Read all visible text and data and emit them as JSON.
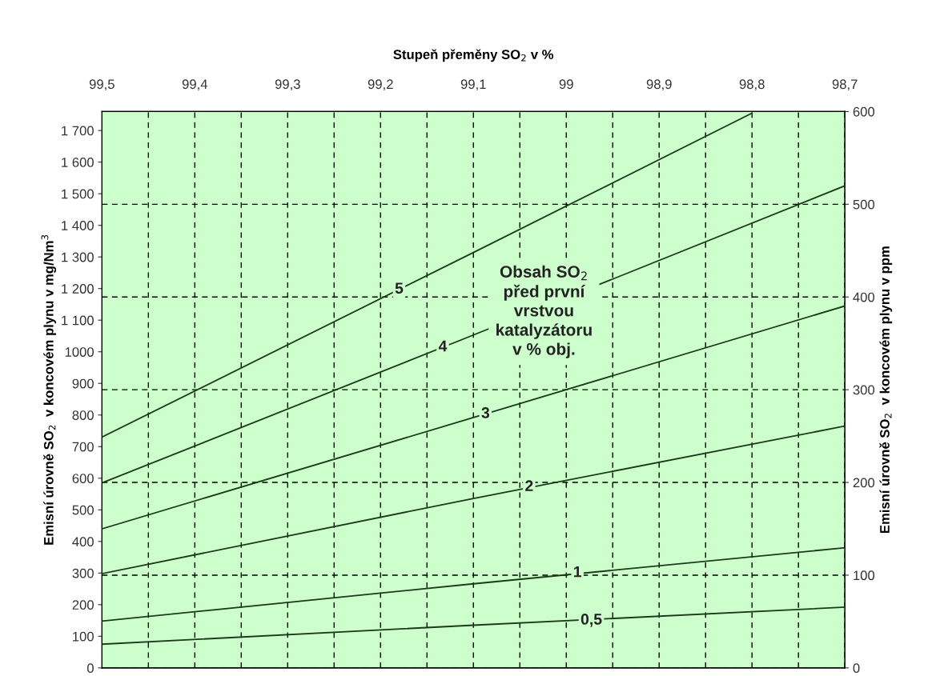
{
  "chart_data": {
    "type": "line",
    "x2label": "Stupeň přeměny SO$_{2}$ v %",
    "ylabel": "Emisní úrovně SO$_{2}$  v koncovém plynu v mg/Nm$^{3}$",
    "y2label": "Emisní úrovně SO$_{2}$  v koncovém plynu v ppm",
    "xlim": [
      99.5,
      98.7
    ],
    "xticks": [
      {
        "value": 99.5,
        "label": "99,5"
      },
      {
        "value": 99.45,
        "label": null
      },
      {
        "value": 99.4,
        "label": "99,4"
      },
      {
        "value": 99.35,
        "label": null
      },
      {
        "value": 99.3,
        "label": "99,3"
      },
      {
        "value": 99.25,
        "label": null
      },
      {
        "value": 99.2,
        "label": "99,2"
      },
      {
        "value": 99.15,
        "label": null
      },
      {
        "value": 99.1,
        "label": "99,1"
      },
      {
        "value": 99.05,
        "label": null
      },
      {
        "value": 99,
        "label": "99"
      },
      {
        "value": 98.95,
        "label": null
      },
      {
        "value": 98.9,
        "label": "98,9"
      },
      {
        "value": 98.85,
        "label": null
      },
      {
        "value": 98.8,
        "label": "98,8"
      },
      {
        "value": 98.75,
        "label": null
      },
      {
        "value": 98.7,
        "label": "98,7"
      }
    ],
    "ylim": [
      0,
      1760
    ],
    "yticks": [
      0,
      100,
      200,
      300,
      400,
      500,
      600,
      700,
      800,
      900,
      1000,
      {
        "value": 1100,
        "label": "1 100"
      },
      {
        "value": 1200,
        "label": "1 200"
      },
      {
        "value": 1300,
        "label": "1 300"
      },
      {
        "value": 1400,
        "label": "1 400"
      },
      {
        "value": 1500,
        "label": "1 500"
      },
      {
        "value": 1600,
        "label": "1 600"
      },
      {
        "value": 1700,
        "label": "1 700"
      }
    ],
    "y2lim": [
      0,
      600
    ],
    "y2ticks": [
      0,
      100,
      200,
      300,
      400,
      500,
      600
    ],
    "grid": true,
    "series": [
      {
        "color": "#1a3a1a",
        "x": [
          99.5,
          99.1,
          98.7
        ],
        "values": [
          75,
          135,
          192
        ]
      },
      {
        "color": "#1a3a1a",
        "x": [
          99.5,
          99.1,
          98.7
        ],
        "values": [
          148,
          266,
          380
        ]
      },
      {
        "color": "#1a3a1a",
        "x": [
          99.5,
          99.1,
          98.7
        ],
        "values": [
          298,
          536,
          765
        ]
      },
      {
        "color": "#1a3a1a",
        "x": [
          99.5,
          99.1,
          98.7
        ],
        "values": [
          440,
          792,
          1145
        ]
      },
      {
        "color": "#1a3a1a",
        "x": [
          99.5,
          99.1,
          98.7
        ],
        "values": [
          585,
          1053,
          1525
        ]
      },
      {
        "color": "#1a3a1a",
        "x": [
          99.5,
          99.1,
          98.8
        ],
        "values": [
          730,
          1314,
          1755
        ]
      }
    ],
    "annotations": [
      {
        "text": "0,5",
        "x": 98.973,
        "y": 150
      },
      {
        "text": "1",
        "x": 98.988,
        "y": 300
      },
      {
        "text": "2",
        "x": 99.04,
        "y": 572
      },
      {
        "text": "3",
        "x": 99.087,
        "y": 803
      },
      {
        "text": "4",
        "x": 99.133,
        "y": 1014
      },
      {
        "text": "5",
        "x": 99.18,
        "y": 1197
      },
      "Obsah SO$_{2}$\npřed první\nvrstvou\nkatalyzátoru\nv % obj."
    ]
  }
}
